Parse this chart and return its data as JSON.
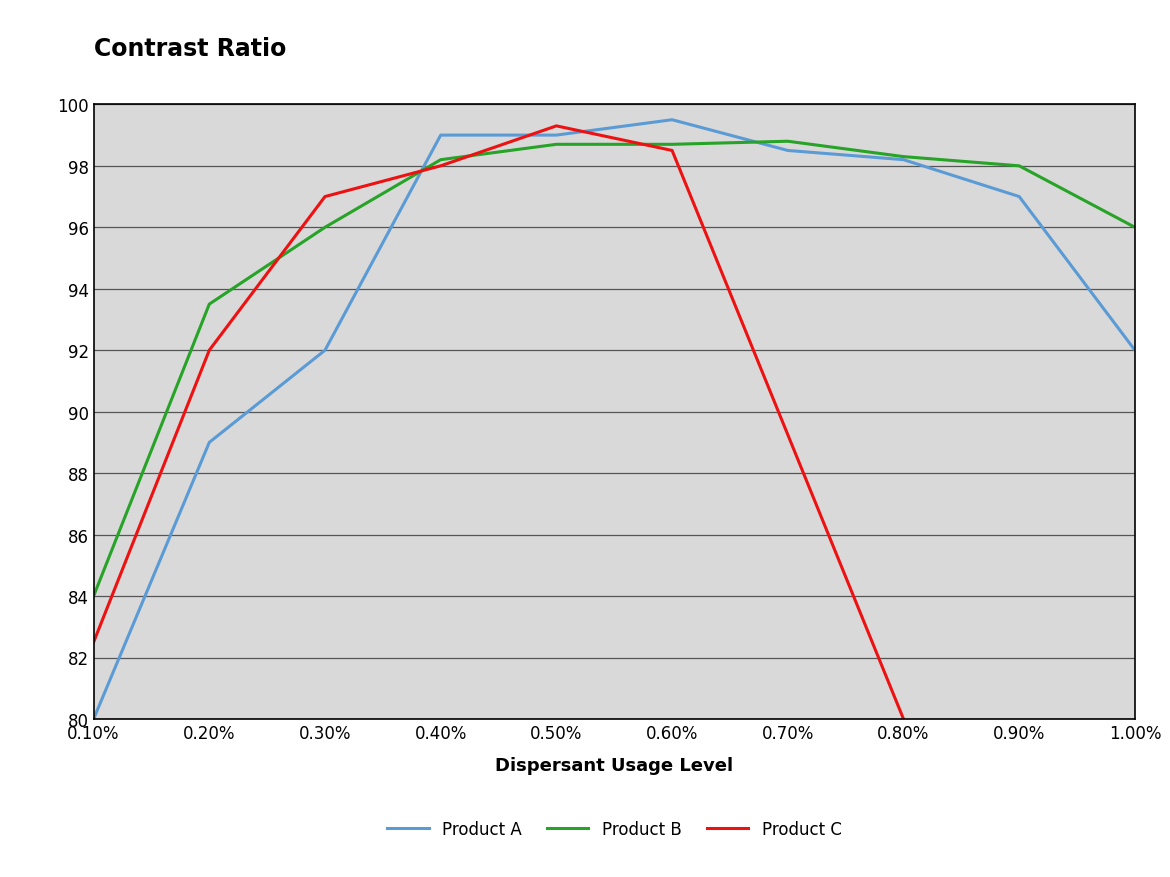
{
  "title": "Contrast Ratio",
  "xlabel": "Dispersant Usage Level",
  "x_labels": [
    "0.10%",
    "0.20%",
    "0.30%",
    "0.40%",
    "0.50%",
    "0.60%",
    "0.70%",
    "0.80%",
    "0.90%",
    "1.00%"
  ],
  "x_values": [
    0.1,
    0.2,
    0.3,
    0.4,
    0.5,
    0.6,
    0.7,
    0.8,
    0.9,
    1.0
  ],
  "product_a": {
    "label": "Product A",
    "color": "#5B9BD5",
    "values": [
      80.0,
      89.0,
      92.0,
      99.0,
      99.0,
      99.5,
      98.5,
      98.2,
      97.0,
      92.0
    ]
  },
  "product_b": {
    "label": "Product B",
    "color": "#27A327",
    "values": [
      84.0,
      93.5,
      96.0,
      98.2,
      98.7,
      98.7,
      98.8,
      98.3,
      98.0,
      96.0
    ]
  },
  "product_c_x": [
    0.1,
    0.2,
    0.3,
    0.4,
    0.5,
    0.6,
    0.8
  ],
  "product_c_y": [
    82.5,
    92.0,
    97.0,
    98.0,
    99.3,
    98.5,
    80.0
  ],
  "product_c": {
    "label": "Product C",
    "color": "#EE1111"
  },
  "ylim": [
    80,
    100
  ],
  "yticks": [
    80,
    82,
    84,
    86,
    88,
    90,
    92,
    94,
    96,
    98,
    100
  ],
  "plot_bg_color": "#D9D9D9",
  "line_width": 2.2,
  "title_fontsize": 17,
  "axis_label_fontsize": 13,
  "tick_fontsize": 12,
  "legend_fontsize": 12,
  "grid_color": "#555555",
  "grid_linewidth": 0.9
}
